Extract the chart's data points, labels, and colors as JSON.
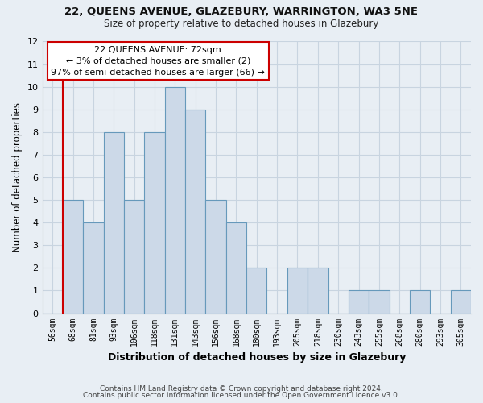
{
  "title1": "22, QUEENS AVENUE, GLAZEBURY, WARRINGTON, WA3 5NE",
  "title2": "Size of property relative to detached houses in Glazebury",
  "xlabel": "Distribution of detached houses by size in Glazebury",
  "ylabel": "Number of detached properties",
  "bins": [
    "56sqm",
    "68sqm",
    "81sqm",
    "93sqm",
    "106sqm",
    "118sqm",
    "131sqm",
    "143sqm",
    "156sqm",
    "168sqm",
    "180sqm",
    "193sqm",
    "205sqm",
    "218sqm",
    "230sqm",
    "243sqm",
    "255sqm",
    "268sqm",
    "280sqm",
    "293sqm",
    "305sqm"
  ],
  "values": [
    0,
    5,
    4,
    8,
    5,
    8,
    10,
    9,
    5,
    4,
    2,
    0,
    2,
    2,
    0,
    1,
    1,
    0,
    1,
    0,
    1
  ],
  "bar_color": "#ccd9e8",
  "bar_edge_color": "#6699bb",
  "redline_color": "#cc0000",
  "annotation_title": "22 QUEENS AVENUE: 72sqm",
  "annotation_line1": "← 3% of detached houses are smaller (2)",
  "annotation_line2": "97% of semi-detached houses are larger (66) →",
  "annotation_box_color": "#ffffff",
  "annotation_box_edge": "#cc0000",
  "footer1": "Contains HM Land Registry data © Crown copyright and database right 2024.",
  "footer2": "Contains public sector information licensed under the Open Government Licence v3.0.",
  "ylim": [
    0,
    12
  ],
  "grid_color": "#c8d4e0",
  "background_color": "#e8eef4"
}
